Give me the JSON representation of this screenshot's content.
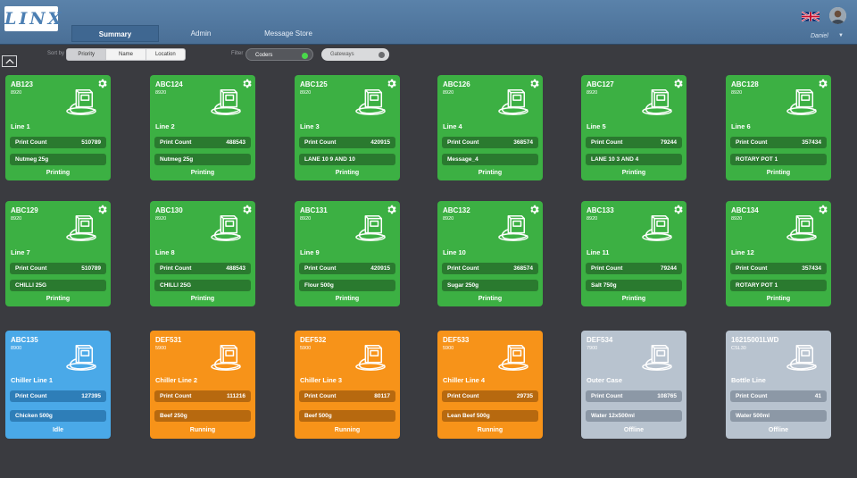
{
  "header": {
    "logo": "LINX",
    "tabs": [
      {
        "label": "Summary",
        "active": true
      },
      {
        "label": "Admin",
        "active": false
      },
      {
        "label": "Message Store",
        "active": false
      }
    ],
    "user": "Daniel"
  },
  "filterbar": {
    "sort_label": "Sort by",
    "sort_options": [
      "Priority",
      "Name",
      "Location"
    ],
    "filter_label": "Filter",
    "coders_label": "Coders",
    "gateways_label": "Gateways"
  },
  "colors": {
    "running_green": "#3cb043",
    "idle_blue": "#4aa9e8",
    "warning_orange": "#f79319",
    "offline_grey": "#b8c3cf"
  },
  "print_count_label": "Print Count",
  "tiles": [
    {
      "id": "AB123",
      "model": "8920",
      "line": "Line 1",
      "count": "510789",
      "message": "Nutmeg 25g",
      "status": "Printing"
    },
    {
      "id": "ABC124",
      "model": "8920",
      "line": "Line 2",
      "count": "488543",
      "message": "Nutmeg 25g",
      "status": "Printing"
    },
    {
      "id": "ABC125",
      "model": "8920",
      "line": "Line 3",
      "count": "420915",
      "message": "LANE 10 9 AND 10",
      "status": "Printing"
    },
    {
      "id": "ABC126",
      "model": "8920",
      "line": "Line 4",
      "count": "368574",
      "message": "Message_4",
      "status": "Printing"
    },
    {
      "id": "ABC127",
      "model": "8920",
      "line": "Line 5",
      "count": "79244",
      "message": "LANE 10 3 AND 4",
      "status": "Printing"
    },
    {
      "id": "ABC128",
      "model": "8920",
      "line": "Line 6",
      "count": "357434",
      "message": "ROTARY POT 1",
      "status": "Printing"
    },
    {
      "id": "ABC129",
      "model": "8920",
      "line": "Line 7",
      "count": "510789",
      "message": "CHILLI 25G",
      "status": "Printing"
    },
    {
      "id": "ABC130",
      "model": "8920",
      "line": "Line 8",
      "count": "488543",
      "message": "CHILLI 25G",
      "status": "Printing"
    },
    {
      "id": "ABC131",
      "model": "8920",
      "line": "Line 9",
      "count": "420915",
      "message": "Flour 500g",
      "status": "Printing"
    },
    {
      "id": "ABC132",
      "model": "8920",
      "line": "Line 10",
      "count": "368574",
      "message": "Sugar 250g",
      "status": "Printing"
    },
    {
      "id": "ABC133",
      "model": "8920",
      "line": "Line 11",
      "count": "79244",
      "message": "Salt 750g",
      "status": "Printing"
    },
    {
      "id": "ABC134",
      "model": "8920",
      "line": "Line 12",
      "count": "357434",
      "message": "ROTARY POT 1",
      "status": "Printing"
    },
    {
      "id": "ABC135",
      "model": "8900",
      "line": "Chiller Line 1",
      "count": "127395",
      "message": "Chicken 500g",
      "status": "Idle"
    },
    {
      "id": "DEF531",
      "model": "5900",
      "line": "Chiller Line 2",
      "count": "111216",
      "message": "Beef 250g",
      "status": "Running"
    },
    {
      "id": "DEF532",
      "model": "5900",
      "line": "Chiller Line 3",
      "count": "80117",
      "message": "Beef 500g",
      "status": "Running"
    },
    {
      "id": "DEF533",
      "model": "5900",
      "line": "Chiller Line 4",
      "count": "29735",
      "message": "Lean Beef 500g",
      "status": "Running"
    },
    {
      "id": "DEF534",
      "model": "7900",
      "line": "Outer Case",
      "count": "108765",
      "message": "Water 12x500ml",
      "status": "Offline"
    },
    {
      "id": "16215001LWD",
      "model": "CSL30",
      "line": "Bottle Line",
      "count": "41",
      "message": "Water 500ml",
      "status": "Offline"
    }
  ]
}
